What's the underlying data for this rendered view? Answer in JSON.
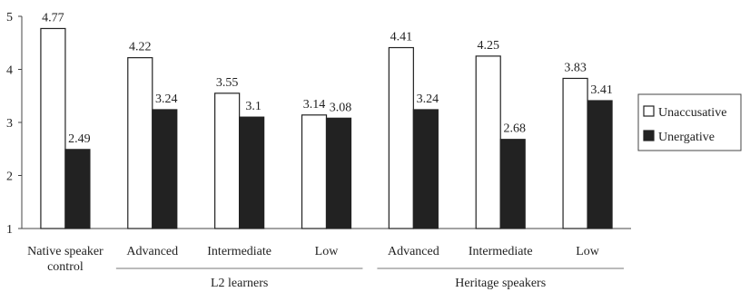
{
  "chart_data": {
    "type": "bar",
    "categories": [
      "Native speaker control",
      "Advanced",
      "Intermediate",
      "Low",
      "Advanced",
      "Intermediate",
      "Low"
    ],
    "category_label_lines": [
      [
        "Native speaker",
        "control"
      ],
      [
        "Advanced"
      ],
      [
        "Intermediate"
      ],
      [
        "Low"
      ],
      [
        "Advanced"
      ],
      [
        "Intermediate"
      ],
      [
        "Low"
      ]
    ],
    "groups": [
      {
        "label": "L2 learners",
        "from": 1,
        "to": 3
      },
      {
        "label": "Heritage speakers",
        "from": 4,
        "to": 6
      }
    ],
    "series": [
      {
        "name": "Unaccusative",
        "values": [
          4.77,
          4.22,
          3.55,
          3.14,
          4.41,
          4.25,
          3.83
        ],
        "labels": [
          "4.77",
          "4.22",
          "3.55",
          "3.14",
          "4.41",
          "4.25",
          "3.83"
        ],
        "color": "#ffffff",
        "stroke": "#222222"
      },
      {
        "name": "Unergative",
        "values": [
          2.49,
          3.24,
          3.1,
          3.08,
          3.24,
          2.68,
          3.41
        ],
        "labels": [
          "2.49",
          "3.24",
          "3.1",
          "3.08",
          "3.24",
          "2.68",
          "3.41"
        ],
        "color": "#222222",
        "stroke": "#222222"
      }
    ],
    "yticks": [
      "1",
      "2",
      "3",
      "4",
      "5"
    ],
    "ylim": [
      1,
      5
    ],
    "grid": false,
    "legend_position": "right",
    "title": "",
    "xlabel": "",
    "ylabel": ""
  }
}
